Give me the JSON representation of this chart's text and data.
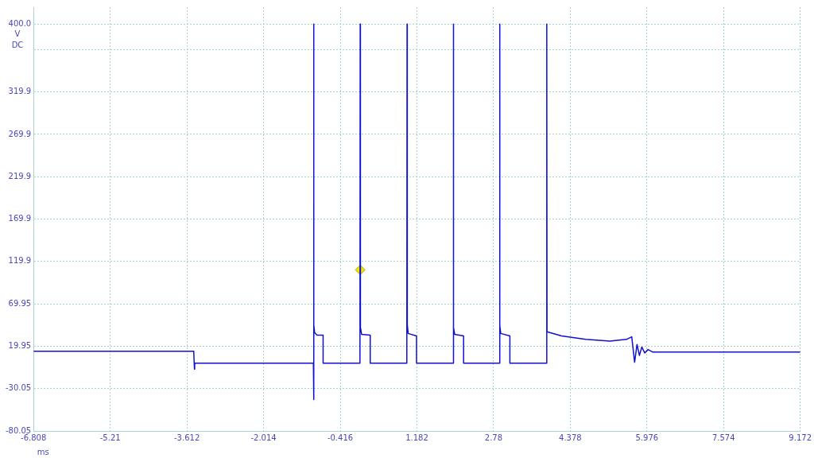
{
  "chart_data": {
    "type": "line",
    "xlabel": "ms",
    "ylabel": "V DC",
    "grid": true,
    "xlim": [
      -6.808,
      9.172
    ],
    "ylim": [
      -80.05,
      419.95
    ],
    "xticks": [
      -6.808,
      -5.21,
      -3.612,
      -2.014,
      -0.416,
      1.182,
      2.78,
      4.378,
      5.976,
      7.574,
      9.172
    ],
    "yticks": [
      -80.05,
      -30.05,
      19.95,
      69.95,
      119.9,
      169.9,
      219.9,
      269.9,
      319.9,
      {
        "value": 369.95,
        "label": null
      },
      {
        "value": 400,
        "label": "400.0"
      }
    ],
    "series": [
      {
        "type": "line",
        "marker": "none",
        "color": "#1010d0",
        "x": [
          -6.808,
          -3.47,
          -3.455,
          -3.45,
          -0.975,
          -0.969,
          -0.969,
          -0.965,
          -0.95,
          -0.9,
          -0.773,
          -0.773,
          -0.005,
          0,
          0.005,
          0.03,
          0.209,
          0.209,
          0.972,
          0.977,
          0.982,
          1.0,
          1.174,
          1.174,
          1.937,
          1.942,
          1.947,
          1.97,
          2.155,
          2.155,
          2.902,
          2.907,
          2.912,
          2.93,
          3.12,
          3.12,
          3.884,
          3.889,
          3.894,
          4.2,
          4.7,
          5.2,
          5.55,
          5.66,
          5.72,
          5.77,
          5.82,
          5.87,
          5.93,
          6.0,
          6.1,
          9.172
        ],
        "values": [
          14,
          14,
          -7,
          0,
          0,
          400,
          -43,
          45,
          36,
          33,
          33,
          0,
          0,
          400,
          42,
          34,
          33,
          0,
          0,
          400,
          45,
          35,
          32,
          0,
          0,
          400,
          42,
          34,
          32,
          0,
          0,
          400,
          44,
          35,
          32,
          0,
          0,
          400,
          37,
          32,
          28,
          26,
          28,
          31,
          1,
          22,
          9,
          19,
          12,
          16,
          13,
          13
        ]
      },
      {
        "type": "scatter",
        "marker": "diamond",
        "color": "#f2e600",
        "x": [
          0
        ],
        "values": [
          110
        ]
      }
    ]
  }
}
